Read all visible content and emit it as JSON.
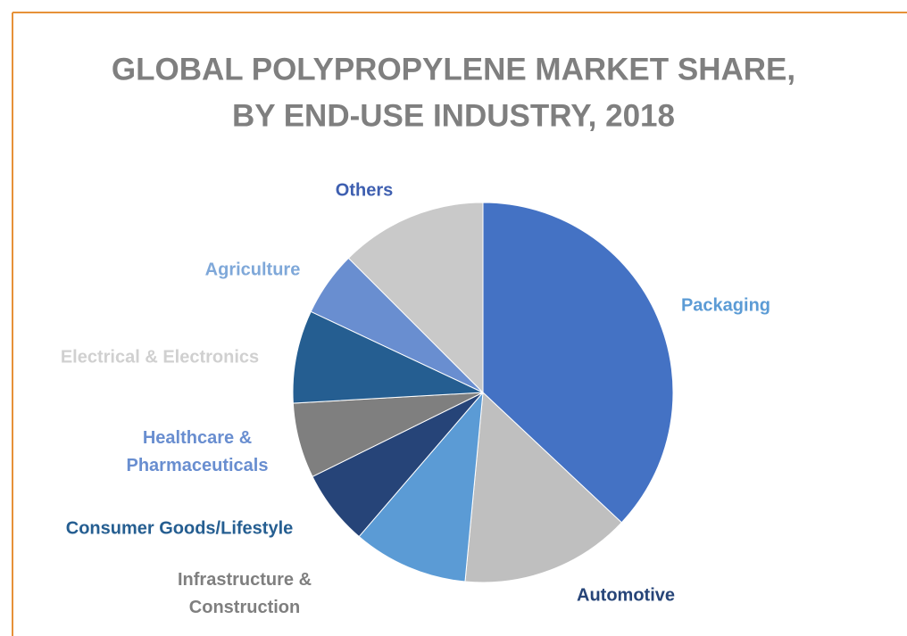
{
  "chart_data": {
    "type": "pie",
    "title": [
      "GLOBAL POLYPROPYLENE MARKET SHARE,",
      "BY END-USE INDUSTRY, 2018"
    ],
    "categories": [
      "Packaging",
      "Automotive",
      "Infrastructure & Construction",
      "Consumer Goods/Lifestyle",
      "Healthcare & Pharmaceuticals",
      "Electrical & Electronics",
      "Agriculture",
      "Others"
    ],
    "values": [
      37,
      14.5,
      9.8,
      6.4,
      6.4,
      7.9,
      5.5,
      12.5
    ],
    "colors": [
      "#4472c4",
      "#bfbfbf",
      "#5b9bd5",
      "#264478",
      "#7f7f7f",
      "#255e91",
      "#698ed0",
      "#c9c9c9"
    ],
    "label_colors": [
      "#5b9bd5",
      "#264478",
      "#7f7f7f",
      "#255e91",
      "#698ed0",
      "#d0d0d0",
      "#7fa8d9",
      "#3e5fb0"
    ]
  }
}
